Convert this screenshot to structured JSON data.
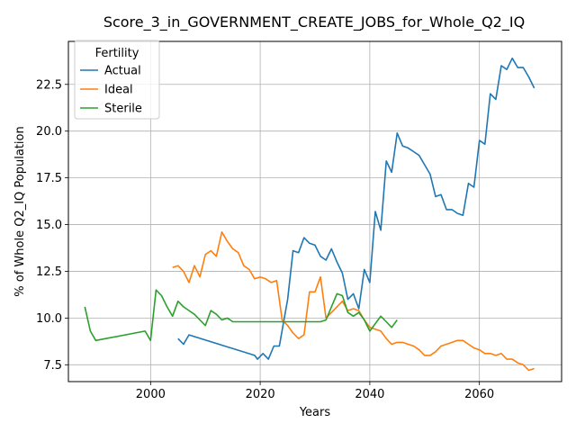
{
  "chart_data": {
    "type": "line",
    "title": "Score_3_in_GOVERNMENT_CREATE_JOBS_for_Whole_Q2_IQ",
    "xlabel": "Years",
    "ylabel": "% of Whole Q2_IQ Population",
    "xlim": [
      1985,
      2075
    ],
    "ylim": [
      6.6,
      24.8
    ],
    "xticks": [
      2000,
      2020,
      2040,
      2060
    ],
    "xtick_labels": [
      "2000",
      "2020",
      "2040",
      "2060"
    ],
    "yticks": [
      7.5,
      10.0,
      12.5,
      15.0,
      17.5,
      20.0,
      22.5
    ],
    "ytick_labels": [
      "7.5",
      "10.0",
      "12.5",
      "15.0",
      "17.5",
      "20.0",
      "22.5"
    ],
    "grid": true,
    "legend": {
      "title": "Fertility",
      "position": "top-left"
    },
    "series": [
      {
        "name": "Actual",
        "color": "#1f77b4",
        "points": [
          [
            2005,
            8.9
          ],
          [
            2006,
            8.6
          ],
          [
            2007,
            9.1
          ],
          [
            2019,
            8.0
          ],
          [
            2019.5,
            7.8
          ],
          [
            2020.5,
            8.1
          ],
          [
            2021.5,
            7.8
          ],
          [
            2022.5,
            8.5
          ],
          [
            2023.5,
            8.5
          ],
          [
            2025,
            11.0
          ],
          [
            2026,
            13.6
          ],
          [
            2027,
            13.5
          ],
          [
            2028,
            14.3
          ],
          [
            2029,
            14.0
          ],
          [
            2030,
            13.9
          ],
          [
            2031,
            13.3
          ],
          [
            2032,
            13.1
          ],
          [
            2033,
            13.7
          ],
          [
            2034,
            13.0
          ],
          [
            2035,
            12.4
          ],
          [
            2036,
            11.0
          ],
          [
            2037,
            11.3
          ],
          [
            2038,
            10.5
          ],
          [
            2039,
            12.6
          ],
          [
            2040,
            11.9
          ],
          [
            2041,
            15.7
          ],
          [
            2042,
            14.7
          ],
          [
            2043,
            18.4
          ],
          [
            2044,
            17.8
          ],
          [
            2045,
            19.9
          ],
          [
            2046,
            19.2
          ],
          [
            2047,
            19.1
          ],
          [
            2048,
            18.9
          ],
          [
            2049,
            18.7
          ],
          [
            2050,
            18.2
          ],
          [
            2051,
            17.7
          ],
          [
            2052,
            16.5
          ],
          [
            2053,
            16.6
          ],
          [
            2054,
            15.8
          ],
          [
            2055,
            15.8
          ],
          [
            2056,
            15.6
          ],
          [
            2057,
            15.5
          ],
          [
            2058,
            17.2
          ],
          [
            2059,
            17.0
          ],
          [
            2060,
            19.5
          ],
          [
            2061,
            19.3
          ],
          [
            2062,
            22.0
          ],
          [
            2063,
            21.7
          ],
          [
            2064,
            23.5
          ],
          [
            2065,
            23.3
          ],
          [
            2066,
            23.9
          ],
          [
            2067,
            23.4
          ],
          [
            2068,
            23.4
          ],
          [
            2069,
            22.9
          ],
          [
            2070,
            22.3
          ]
        ]
      },
      {
        "name": "Ideal",
        "color": "#ff7f0e",
        "points": [
          [
            2004,
            12.7
          ],
          [
            2005,
            12.8
          ],
          [
            2006,
            12.5
          ],
          [
            2007,
            11.9
          ],
          [
            2008,
            12.8
          ],
          [
            2009,
            12.2
          ],
          [
            2010,
            13.4
          ],
          [
            2011,
            13.6
          ],
          [
            2012,
            13.3
          ],
          [
            2013,
            14.6
          ],
          [
            2014,
            14.1
          ],
          [
            2015,
            13.7
          ],
          [
            2016,
            13.5
          ],
          [
            2017,
            12.8
          ],
          [
            2018,
            12.6
          ],
          [
            2019,
            12.1
          ],
          [
            2020,
            12.2
          ],
          [
            2021,
            12.1
          ],
          [
            2022,
            11.9
          ],
          [
            2023,
            12.0
          ],
          [
            2024,
            9.9
          ],
          [
            2025,
            9.6
          ],
          [
            2026,
            9.2
          ],
          [
            2027,
            8.9
          ],
          [
            2028,
            9.1
          ],
          [
            2029,
            11.4
          ],
          [
            2030,
            11.4
          ],
          [
            2031,
            12.2
          ],
          [
            2032,
            10.0
          ],
          [
            2033,
            10.3
          ],
          [
            2034,
            10.6
          ],
          [
            2035,
            10.9
          ],
          [
            2036,
            10.4
          ],
          [
            2037,
            10.5
          ],
          [
            2038,
            10.4
          ],
          [
            2039,
            9.9
          ],
          [
            2040,
            9.5
          ],
          [
            2041,
            9.4
          ],
          [
            2042,
            9.3
          ],
          [
            2043,
            8.9
          ],
          [
            2044,
            8.6
          ],
          [
            2045,
            8.7
          ],
          [
            2046,
            8.7
          ],
          [
            2047,
            8.6
          ],
          [
            2048,
            8.5
          ],
          [
            2049,
            8.3
          ],
          [
            2050,
            8.0
          ],
          [
            2051,
            8.0
          ],
          [
            2052,
            8.2
          ],
          [
            2053,
            8.5
          ],
          [
            2054,
            8.6
          ],
          [
            2055,
            8.7
          ],
          [
            2056,
            8.8
          ],
          [
            2057,
            8.8
          ],
          [
            2058,
            8.6
          ],
          [
            2059,
            8.4
          ],
          [
            2060,
            8.3
          ],
          [
            2061,
            8.1
          ],
          [
            2062,
            8.1
          ],
          [
            2063,
            8.0
          ],
          [
            2064,
            8.1
          ],
          [
            2065,
            7.8
          ],
          [
            2066,
            7.8
          ],
          [
            2067,
            7.6
          ],
          [
            2068,
            7.5
          ],
          [
            2069,
            7.2
          ],
          [
            2070,
            7.3
          ]
        ]
      },
      {
        "name": "Sterile",
        "color": "#2ca02c",
        "points": [
          [
            1988,
            10.6
          ],
          [
            1989,
            9.3
          ],
          [
            1990,
            8.8
          ],
          [
            1999,
            9.3
          ],
          [
            2000,
            8.8
          ],
          [
            2001,
            11.5
          ],
          [
            2002,
            11.2
          ],
          [
            2003,
            10.6
          ],
          [
            2004,
            10.1
          ],
          [
            2005,
            10.9
          ],
          [
            2006,
            10.6
          ],
          [
            2007,
            10.4
          ],
          [
            2008,
            10.2
          ],
          [
            2009,
            9.9
          ],
          [
            2010,
            9.6
          ],
          [
            2011,
            10.4
          ],
          [
            2012,
            10.2
          ],
          [
            2013,
            9.9
          ],
          [
            2014,
            10.0
          ],
          [
            2015,
            9.8
          ],
          [
            2031,
            9.8
          ],
          [
            2032,
            9.9
          ],
          [
            2033,
            10.6
          ],
          [
            2034,
            11.3
          ],
          [
            2035,
            11.2
          ],
          [
            2036,
            10.3
          ],
          [
            2037,
            10.1
          ],
          [
            2038,
            10.3
          ],
          [
            2039,
            9.9
          ],
          [
            2040,
            9.3
          ],
          [
            2041,
            9.7
          ],
          [
            2042,
            10.1
          ],
          [
            2043,
            9.8
          ],
          [
            2044,
            9.5
          ],
          [
            2045,
            9.9
          ]
        ]
      }
    ]
  }
}
